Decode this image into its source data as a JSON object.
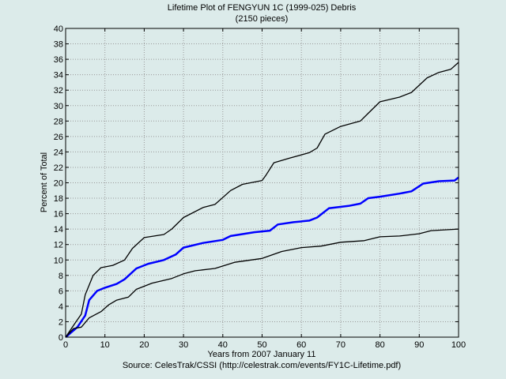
{
  "chart_data": {
    "type": "line",
    "title": "Lifetime Plot of FENGYUN 1C (1999-025) Debris",
    "subtitle": "(2150 pieces)",
    "xlabel": "Years from 2007 January 11",
    "ylabel": "Percent of Total",
    "source": "Source: CelesTrak/CSSI (http://celestrak.com/events/FY1C-Lifetime.pdf)",
    "xlim": [
      0,
      100
    ],
    "ylim": [
      0,
      40
    ],
    "xticks": [
      0,
      10,
      20,
      30,
      40,
      50,
      60,
      70,
      80,
      90,
      100
    ],
    "yticks": [
      0,
      2,
      4,
      6,
      8,
      10,
      12,
      14,
      16,
      18,
      20,
      22,
      24,
      26,
      28,
      30,
      32,
      34,
      36,
      38,
      40
    ],
    "grid": true,
    "background": "#dcebea",
    "series": [
      {
        "color": "#000000",
        "points": [
          [
            0,
            0
          ],
          [
            2,
            1.5
          ],
          [
            4,
            3
          ],
          [
            5,
            5.5
          ],
          [
            7,
            8
          ],
          [
            9,
            9
          ],
          [
            12,
            9.3
          ],
          [
            15,
            10
          ],
          [
            17,
            11.5
          ],
          [
            20,
            12.9
          ],
          [
            25,
            13.3
          ],
          [
            27,
            14
          ],
          [
            30,
            15.5
          ],
          [
            35,
            16.8
          ],
          [
            38,
            17.2
          ],
          [
            42,
            19
          ],
          [
            45,
            19.8
          ],
          [
            50,
            20.3
          ],
          [
            51,
            21
          ],
          [
            53,
            22.6
          ],
          [
            57,
            23.2
          ],
          [
            62,
            23.9
          ],
          [
            64,
            24.5
          ],
          [
            66,
            26.3
          ],
          [
            70,
            27.3
          ],
          [
            75,
            28
          ],
          [
            77,
            29
          ],
          [
            80,
            30.5
          ],
          [
            85,
            31.1
          ],
          [
            88,
            31.7
          ],
          [
            92,
            33.6
          ],
          [
            95,
            34.3
          ],
          [
            98,
            34.7
          ],
          [
            100,
            35.6
          ]
        ]
      },
      {
        "color": "#0000ff",
        "points": [
          [
            0,
            0
          ],
          [
            3,
            1.3
          ],
          [
            5,
            2.8
          ],
          [
            6,
            4.8
          ],
          [
            8,
            6
          ],
          [
            10,
            6.4
          ],
          [
            13,
            6.9
          ],
          [
            15,
            7.5
          ],
          [
            18,
            8.9
          ],
          [
            21,
            9.5
          ],
          [
            25,
            10
          ],
          [
            28,
            10.7
          ],
          [
            30,
            11.6
          ],
          [
            35,
            12.2
          ],
          [
            40,
            12.6
          ],
          [
            42,
            13.1
          ],
          [
            48,
            13.6
          ],
          [
            52,
            13.8
          ],
          [
            54,
            14.6
          ],
          [
            58,
            14.9
          ],
          [
            62,
            15.1
          ],
          [
            64,
            15.5
          ],
          [
            67,
            16.7
          ],
          [
            72,
            17
          ],
          [
            75,
            17.3
          ],
          [
            77,
            18
          ],
          [
            80,
            18.2
          ],
          [
            85,
            18.6
          ],
          [
            88,
            18.9
          ],
          [
            91,
            19.9
          ],
          [
            95,
            20.2
          ],
          [
            99,
            20.3
          ],
          [
            100,
            20.7
          ]
        ]
      },
      {
        "color": "#000000",
        "points": [
          [
            0,
            0
          ],
          [
            2,
            1.1
          ],
          [
            4,
            1.3
          ],
          [
            6,
            2.5
          ],
          [
            9,
            3.3
          ],
          [
            11,
            4.2
          ],
          [
            13,
            4.8
          ],
          [
            16,
            5.2
          ],
          [
            18,
            6.2
          ],
          [
            22,
            7
          ],
          [
            27,
            7.6
          ],
          [
            30,
            8.2
          ],
          [
            33,
            8.6
          ],
          [
            38,
            8.9
          ],
          [
            43,
            9.7
          ],
          [
            50,
            10.2
          ],
          [
            55,
            11.1
          ],
          [
            60,
            11.6
          ],
          [
            65,
            11.8
          ],
          [
            70,
            12.3
          ],
          [
            76,
            12.5
          ],
          [
            80,
            13
          ],
          [
            85,
            13.1
          ],
          [
            90,
            13.4
          ],
          [
            93,
            13.8
          ],
          [
            100,
            14.0
          ]
        ]
      }
    ]
  }
}
